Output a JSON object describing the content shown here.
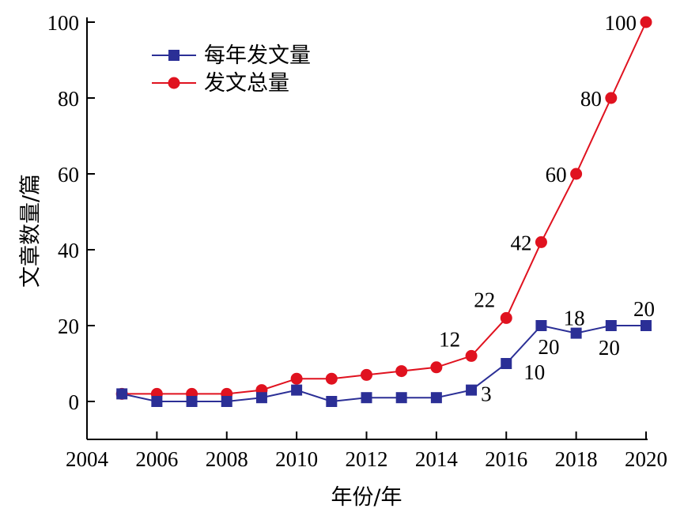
{
  "chart_data": {
    "type": "line",
    "xlabel": "年份/年",
    "ylabel": "文章数量/篇",
    "xlim": [
      2004,
      2020
    ],
    "ylim": [
      -10,
      100
    ],
    "xticks": [
      "2004",
      "2006",
      "2008",
      "2010",
      "2012",
      "2014",
      "2016",
      "2018",
      "2020"
    ],
    "yticks": [
      "0",
      "20",
      "40",
      "60",
      "80",
      "100"
    ],
    "grid": false,
    "legend_position": "top-left",
    "x": [
      2005,
      2006,
      2007,
      2008,
      2009,
      2010,
      2011,
      2012,
      2013,
      2014,
      2015,
      2016,
      2017,
      2018,
      2019,
      2020
    ],
    "series": [
      {
        "name": "每年发文量",
        "color": "#2b2f96",
        "marker": "square",
        "values": [
          2,
          0,
          0,
          0,
          1,
          3,
          0,
          1,
          1,
          1,
          3,
          10,
          20,
          18,
          20,
          20
        ]
      },
      {
        "name": "发文总量",
        "color": "#e0121f",
        "marker": "circle",
        "values": [
          2,
          2,
          2,
          2,
          3,
          6,
          6,
          7,
          8,
          9,
          12,
          22,
          42,
          60,
          80,
          100
        ]
      }
    ],
    "annotations": [
      {
        "text": "3",
        "x": 2015,
        "series": 0
      },
      {
        "text": "10",
        "x": 2016,
        "series": 0
      },
      {
        "text": "20",
        "x": 2017,
        "series": 0
      },
      {
        "text": "18",
        "x": 2018,
        "series": 0
      },
      {
        "text": "20",
        "x": 2019,
        "series": 0
      },
      {
        "text": "20",
        "x": 2020,
        "series": 0
      },
      {
        "text": "12",
        "x": 2015,
        "series": 1
      },
      {
        "text": "22",
        "x": 2016,
        "series": 1
      },
      {
        "text": "42",
        "x": 2017,
        "series": 1
      },
      {
        "text": "60",
        "x": 2018,
        "series": 1
      },
      {
        "text": "80",
        "x": 2019,
        "series": 1
      },
      {
        "text": "100",
        "x": 2020,
        "series": 1
      }
    ]
  }
}
